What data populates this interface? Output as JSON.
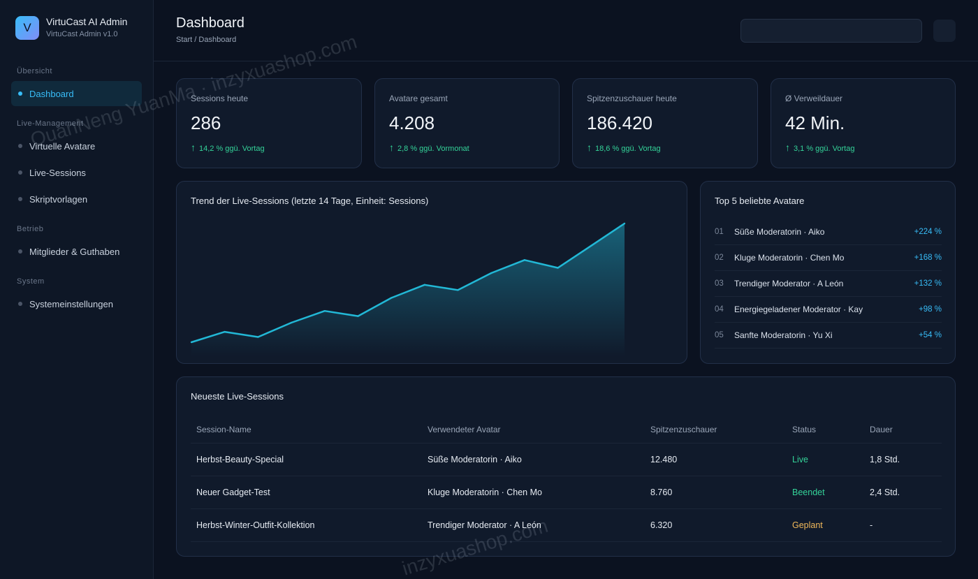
{
  "brand": {
    "logo_letter": "V",
    "title": "VirtuCast AI Admin",
    "subtitle": "VirtuCast Admin v1.0"
  },
  "sidebar": {
    "sections": [
      {
        "label": "Übersicht",
        "items": [
          {
            "label": "Dashboard",
            "active": true
          }
        ]
      },
      {
        "label": "Live-Management",
        "items": [
          {
            "label": "Virtuelle Avatare"
          },
          {
            "label": "Live-Sessions"
          },
          {
            "label": "Skriptvorlagen"
          }
        ]
      },
      {
        "label": "Betrieb",
        "items": [
          {
            "label": "Mitglieder & Guthaben"
          }
        ]
      },
      {
        "label": "System",
        "items": [
          {
            "label": "Systemeinstellungen"
          }
        ]
      }
    ]
  },
  "header": {
    "title": "Dashboard",
    "breadcrumb": "Start / Dashboard",
    "search_placeholder": ""
  },
  "stats": [
    {
      "label": "Sessions heute",
      "value": "286",
      "change": "14,2 % ggü. Vortag"
    },
    {
      "label": "Avatare gesamt",
      "value": "4.208",
      "change": "2,8 % ggü. Vormonat"
    },
    {
      "label": "Spitzenzuschauer heute",
      "value": "186.420",
      "change": "18,6 % ggü. Vortag"
    },
    {
      "label": "Ø Verweildauer",
      "value": "42 Min.",
      "change": "3,1 % ggü. Vortag"
    }
  ],
  "trend_card": {
    "title": "Trend der Live-Sessions (letzte 14 Tage, Einheit: Sessions)"
  },
  "chart_data": {
    "type": "area",
    "title": "Trend der Live-Sessions (letzte 14 Tage, Einheit: Sessions)",
    "xlabel": "",
    "ylabel": "",
    "values": [
      0,
      8,
      4,
      15,
      24,
      20,
      34,
      44,
      40,
      53,
      63,
      57,
      74,
      91
    ],
    "ylim": [
      0,
      91
    ],
    "grid": false,
    "color": "#22b8d6"
  },
  "top_avatars": {
    "title": "Top 5 beliebte Avatare",
    "items": [
      {
        "rank": "01",
        "name": "Süße Moderatorin · Aiko",
        "pct": "+224 %"
      },
      {
        "rank": "02",
        "name": "Kluge Moderatorin · Chen Mo",
        "pct": "+168 %"
      },
      {
        "rank": "03",
        "name": "Trendiger Moderator · A León",
        "pct": "+132 %"
      },
      {
        "rank": "04",
        "name": "Energiegeladener Moderator · Kay",
        "pct": "+98 %"
      },
      {
        "rank": "05",
        "name": "Sanfte Moderatorin · Yu Xi",
        "pct": "+54 %"
      }
    ]
  },
  "sessions_table": {
    "title": "Neueste Live-Sessions",
    "columns": [
      "Session-Name",
      "Verwendeter Avatar",
      "Spitzenzuschauer",
      "Status",
      "Dauer"
    ],
    "rows": [
      {
        "name": "Herbst-Beauty-Special",
        "avatar": "Süße Moderatorin · Aiko",
        "peak": "12.480",
        "status": "Live",
        "duration": "1,8 Std."
      },
      {
        "name": "Neuer Gadget-Test",
        "avatar": "Kluge Moderatorin · Chen Mo",
        "peak": "8.760",
        "status": "Beendet",
        "duration": "2,4 Std."
      },
      {
        "name": "Herbst-Winter-Outfit-Kollektion",
        "avatar": "Trendiger Moderator · A León",
        "peak": "6.320",
        "status": "Geplant",
        "duration": "-"
      }
    ]
  },
  "watermarks": [
    "QuanNeng YuanMa · inzyxuashop.com",
    "inzyxuashop.com"
  ],
  "colors": {
    "accent": "#38bdf8",
    "positive": "#34d399",
    "planned": "#f0b85a",
    "background": "#0b1220"
  }
}
